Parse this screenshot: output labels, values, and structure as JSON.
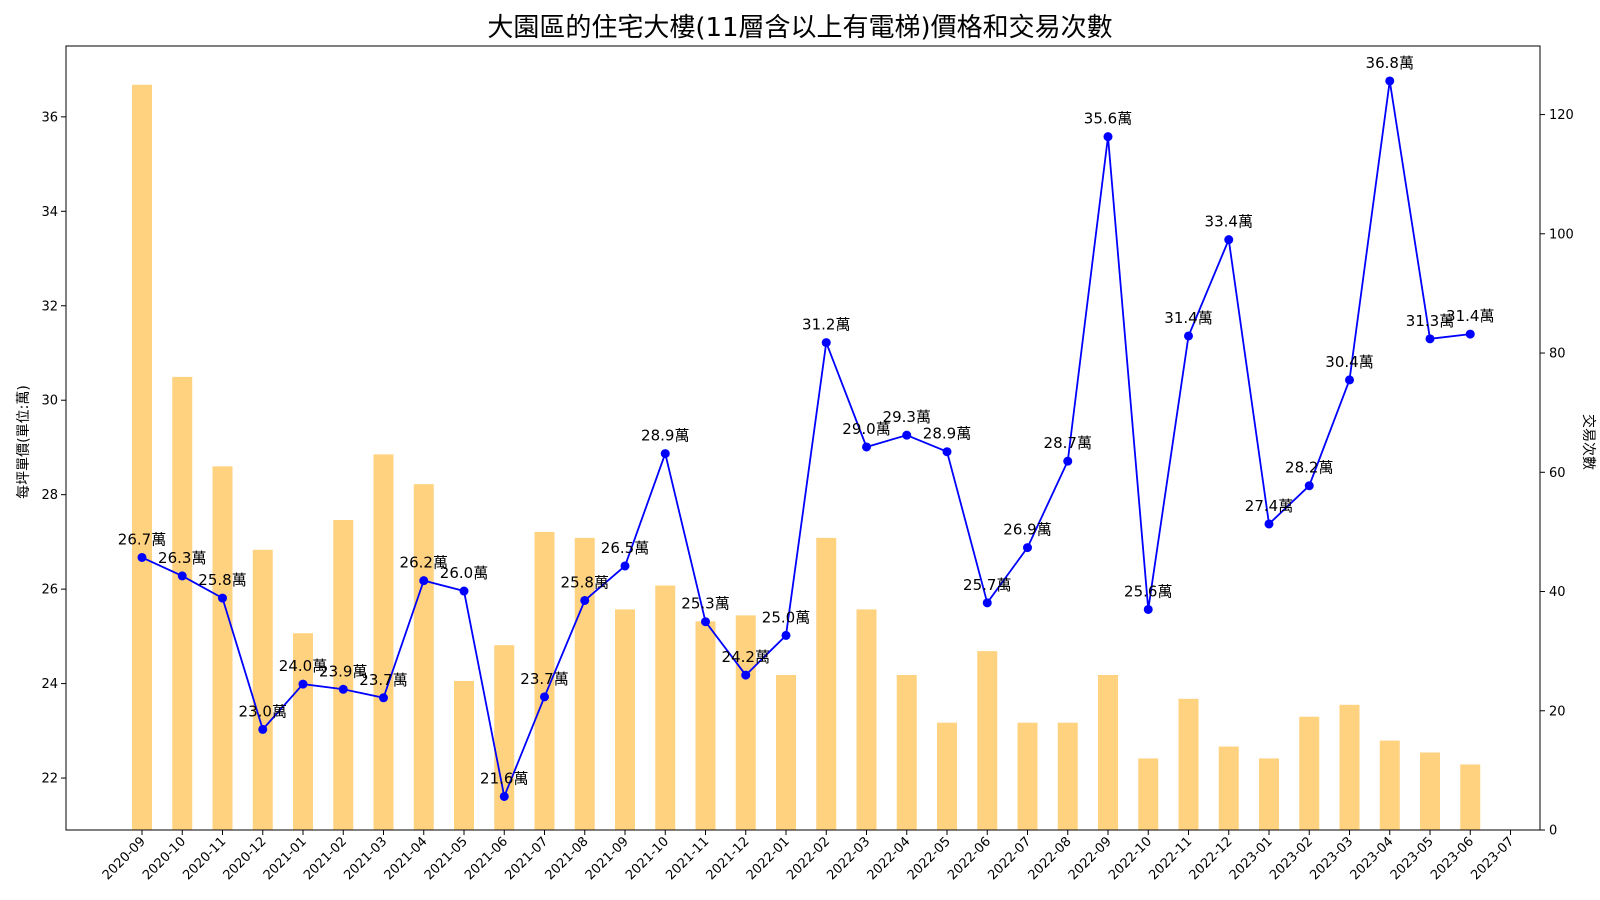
{
  "chart_data": {
    "type": "bar+line",
    "title": "大園區的住宅大樓(11層含以上有電梯)價格和交易次數",
    "ylabel_left": "每坪單價(單位:萬)",
    "ylabel_right": "交易次數",
    "ylim_left": [
      20.9,
      37.5
    ],
    "yticks_left": [
      "22",
      "24",
      "26",
      "28",
      "30",
      "32",
      "34",
      "36"
    ],
    "ylim_right": [
      0,
      131.5
    ],
    "yticks_right": [
      "0",
      "20",
      "40",
      "60",
      "80",
      "100",
      "120"
    ],
    "categories": [
      "2020-09",
      "2020-10",
      "2020-11",
      "2020-12",
      "2021-01",
      "2021-02",
      "2021-03",
      "2021-04",
      "2021-05",
      "2021-06",
      "2021-07",
      "2021-08",
      "2021-09",
      "2021-10",
      "2021-11",
      "2021-12",
      "2022-01",
      "2022-02",
      "2022-03",
      "2022-04",
      "2022-05",
      "2022-06",
      "2022-07",
      "2022-08",
      "2022-09",
      "2022-10",
      "2022-11",
      "2022-12",
      "2023-01",
      "2023-02",
      "2023-03",
      "2023-04",
      "2023-05",
      "2023-06",
      "2023-07"
    ],
    "bar_series": {
      "name": "交易次數",
      "color": "#FFD280",
      "values": [
        125,
        76,
        61,
        47,
        33,
        52,
        63,
        58,
        25,
        31,
        50,
        49,
        37,
        41,
        35,
        36,
        26,
        49,
        37,
        26,
        18,
        30,
        18,
        18,
        26,
        12,
        22,
        14,
        12,
        19,
        21,
        15,
        13,
        11,
        null
      ]
    },
    "line_series": {
      "name": "每坪單價",
      "color": "#0000FF",
      "values": [
        26.67,
        26.28,
        25.81,
        23.03,
        23.99,
        23.88,
        23.7,
        26.18,
        25.96,
        21.61,
        23.72,
        25.76,
        26.49,
        28.87,
        25.31,
        24.18,
        25.02,
        31.22,
        29.01,
        29.26,
        28.91,
        25.71,
        26.88,
        28.71,
        35.58,
        25.57,
        31.36,
        33.4,
        27.38,
        28.19,
        30.43,
        36.76,
        31.3,
        31.4,
        null
      ],
      "labels": [
        "26.7萬",
        "26.3萬",
        "25.8萬",
        "23.0萬",
        "24.0萬",
        "23.9萬",
        "23.7萬",
        "26.2萬",
        "26.0萬",
        "21.6萬",
        "23.7萬",
        "25.8萬",
        "26.5萬",
        "28.9萬",
        "25.3萬",
        "24.2萬",
        "25.0萬",
        "31.2萬",
        "29.0萬",
        "29.3萬",
        "28.9萬",
        "25.7萬",
        "26.9萬",
        "28.7萬",
        "35.6萬",
        "25.6萬",
        "31.4萬",
        "33.4萬",
        "27.4萬",
        "28.2萬",
        "30.4萬",
        "36.8萬",
        "31.3萬",
        "31.4萬",
        ""
      ]
    },
    "grid": false
  }
}
